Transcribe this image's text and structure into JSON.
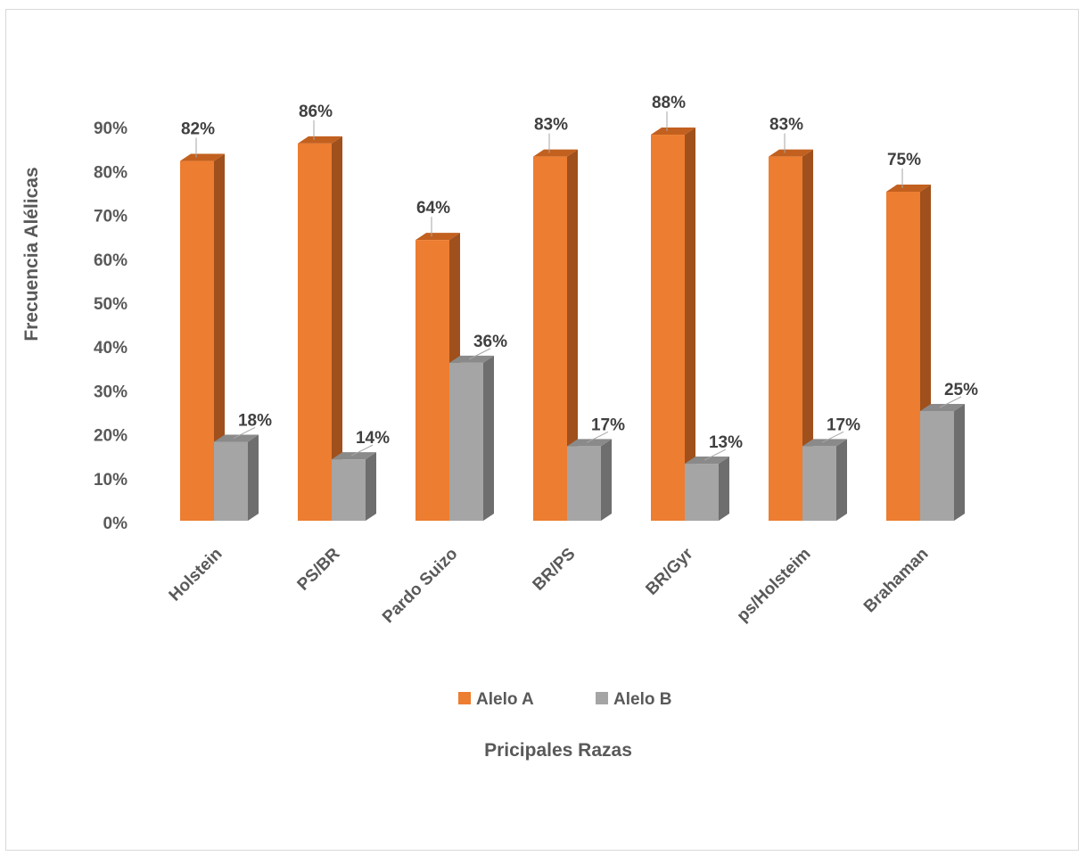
{
  "chart_data": {
    "type": "bar",
    "categories": [
      "Holstein",
      "PS/BR",
      "Pardo Suizo",
      "BR/PS",
      "BR/Gyr",
      "ps/Holsteim",
      "Brahaman"
    ],
    "series": [
      {
        "name": "Alelo A",
        "values": [
          82,
          86,
          64,
          83,
          88,
          83,
          75
        ],
        "labels": [
          "82%",
          "86%",
          "64%",
          "83%",
          "88%",
          "83%",
          "75%"
        ],
        "color": "#ED7D31",
        "side_color": "#A0501C",
        "top_color": "#C2601F"
      },
      {
        "name": "Alelo B",
        "values": [
          18,
          14,
          36,
          17,
          13,
          17,
          25
        ],
        "labels": [
          "18%",
          "14%",
          "36%",
          "17%",
          "13%",
          "17%",
          "25%"
        ],
        "color": "#A5A5A5",
        "side_color": "#6E6E6E",
        "top_color": "#8A8A8A"
      }
    ],
    "y_ticks": [
      "0%",
      "10%",
      "20%",
      "30%",
      "40%",
      "50%",
      "60%",
      "70%",
      "80%",
      "90%"
    ],
    "ylim": [
      0,
      90
    ],
    "ylabel": "Frecuencia  Alélicas",
    "xlabel": "Pricipales Razas",
    "legend_position": "bottom",
    "grid": false,
    "style": "3d-column"
  }
}
